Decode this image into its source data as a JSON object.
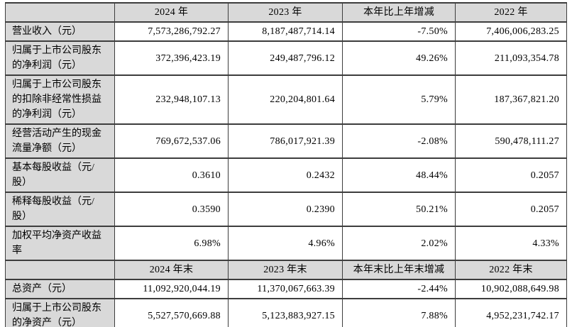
{
  "colors": {
    "header_bg": "#d9d9d9",
    "label_bg": "#d9d9d9",
    "cell_bg": "#ffffff",
    "border": "#3d3d3d",
    "text": "#000000"
  },
  "table": {
    "header_annual": {
      "corner": "",
      "cols": [
        "2024 年",
        "2023 年",
        "本年比上年增减",
        "2022 年"
      ]
    },
    "rows_annual": [
      {
        "label": "营业收入（元）",
        "values": [
          "7,573,286,792.27",
          "8,187,487,714.14",
          "-7.50%",
          "7,406,006,283.25"
        ]
      },
      {
        "label": "归属于上市公司股东的净利润（元）",
        "values": [
          "372,396,423.19",
          "249,487,796.12",
          "49.26%",
          "211,093,354.78"
        ]
      },
      {
        "label": "归属于上市公司股东的扣除非经常性损益的净利润（元）",
        "values": [
          "232,948,107.13",
          "220,204,801.64",
          "5.79%",
          "187,367,821.20"
        ]
      },
      {
        "label": "经营活动产生的现金流量净额（元）",
        "values": [
          "769,672,537.06",
          "786,017,921.39",
          "-2.08%",
          "590,478,111.27"
        ]
      },
      {
        "label": "基本每股收益（元/股）",
        "values": [
          "0.3610",
          "0.2432",
          "48.44%",
          "0.2057"
        ]
      },
      {
        "label": "稀释每股收益（元/股）",
        "values": [
          "0.3590",
          "0.2390",
          "50.21%",
          "0.2057"
        ]
      },
      {
        "label": "加权平均净资产收益率",
        "values": [
          "6.98%",
          "4.96%",
          "2.02%",
          "4.33%"
        ]
      }
    ],
    "header_yearend": {
      "corner": "",
      "cols": [
        "2024 年末",
        "2023 年末",
        "本年末比上年末增减",
        "2022 年末"
      ]
    },
    "rows_yearend": [
      {
        "label": "总资产（元）",
        "values": [
          "11,092,920,044.19",
          "11,370,067,663.39",
          "-2.44%",
          "10,902,088,649.98"
        ]
      },
      {
        "label": "归属于上市公司股东的净资产（元）",
        "values": [
          "5,527,570,669.88",
          "5,123,883,927.15",
          "7.88%",
          "4,952,231,742.17"
        ]
      }
    ]
  }
}
